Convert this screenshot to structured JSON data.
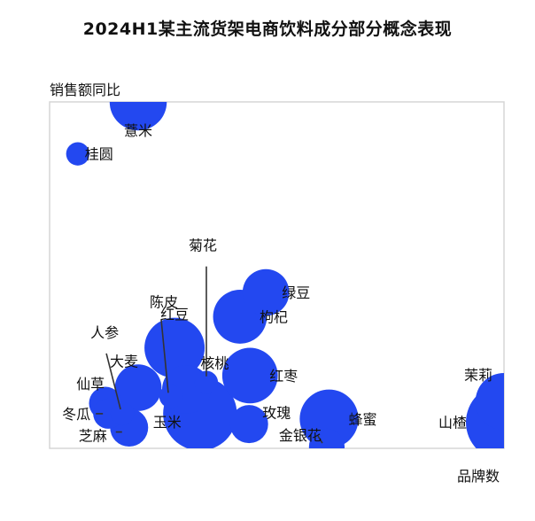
{
  "chart_data": {
    "type": "scatter",
    "title": "2024H1某主流货架电商饮料成分部分概念表现",
    "xlabel": "品牌数",
    "ylabel": "销售额同比",
    "grid": false,
    "legend": "none",
    "colors": {
      "bubble": "#2348f0",
      "frame": "#d6d6d6",
      "leader": "#333333"
    },
    "xlim": [
      0,
      100
    ],
    "ylim": [
      0,
      100
    ],
    "points": [
      {
        "label": "薏米",
        "x": 19.5,
        "y": 100.0,
        "size": 18
      },
      {
        "label": "桂圆",
        "x": 6.2,
        "y": 85.0,
        "size": 3
      },
      {
        "label": "菊花",
        "x": 34.5,
        "y": 19.0,
        "size": 3
      },
      {
        "label": "绿豆",
        "x": 47.6,
        "y": 45.0,
        "size": 12
      },
      {
        "label": "红豆",
        "x": 27.5,
        "y": 29.0,
        "size": 20
      },
      {
        "label": "枸杞",
        "x": 41.9,
        "y": 38.0,
        "size": 16
      },
      {
        "label": "陈皮",
        "x": 26.7,
        "y": 15.0,
        "size": 3
      },
      {
        "label": "人参",
        "x": 16.0,
        "y": 10.0,
        "size": 3
      },
      {
        "label": "大麦",
        "x": 19.5,
        "y": 17.5,
        "size": 12
      },
      {
        "label": "核桃",
        "x": 30.1,
        "y": 17.0,
        "size": 13
      },
      {
        "label": "红枣",
        "x": 44.1,
        "y": 21.0,
        "size": 17
      },
      {
        "label": "仙草",
        "x": 12.3,
        "y": 13.0,
        "size": 6
      },
      {
        "label": "冬瓜",
        "x": 12.9,
        "y": 10.0,
        "size": 5
      },
      {
        "label": "芝麻",
        "x": 17.5,
        "y": 6.0,
        "size": 8
      },
      {
        "label": "玉米",
        "x": 33.1,
        "y": 10.0,
        "size": 30
      },
      {
        "label": "玫瑰",
        "x": 43.9,
        "y": 7.0,
        "size": 8
      },
      {
        "label": "蜂蜜",
        "x": 61.5,
        "y": 8.5,
        "size": 19
      },
      {
        "label": "金银花",
        "x": 61.0,
        "y": 0.5,
        "size": 7
      },
      {
        "label": "山楂",
        "x": 100.0,
        "y": 7.5,
        "size": 32
      },
      {
        "label": "茉莉",
        "x": 100.0,
        "y": 13.5,
        "size": 18
      }
    ]
  }
}
